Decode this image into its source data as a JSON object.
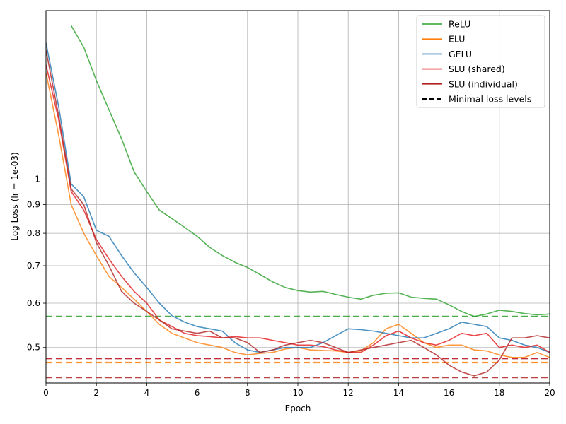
{
  "chart_data": {
    "type": "line",
    "xlabel": "Epoch",
    "ylabel": "Log Loss (lr = 1e-03)",
    "xlim": [
      0,
      20
    ],
    "ylim": [
      0.432,
      2.0
    ],
    "yscale": "log",
    "grid": true,
    "legend_position": "top-right",
    "x_ticks": [
      0,
      2,
      4,
      6,
      8,
      10,
      12,
      14,
      16,
      18,
      20
    ],
    "x_tick_labels": [
      "0",
      "2",
      "4",
      "6",
      "8",
      "10",
      "12",
      "14",
      "16",
      "18",
      "20"
    ],
    "y_ticks": [
      0.5,
      0.6,
      0.7,
      0.8,
      0.9,
      1.0
    ],
    "y_tick_labels": [
      "0.5",
      "0.6",
      "0.7",
      "0.8",
      "0.9",
      "1"
    ],
    "series": [
      {
        "name": "ReLU",
        "color": "#2ca02c",
        "x": [
          1,
          1.5,
          2,
          2.5,
          3,
          3.5,
          4,
          4.5,
          5,
          5.5,
          6,
          6.5,
          7,
          7.5,
          8,
          8.5,
          9,
          9.5,
          10,
          10.5,
          11,
          11.5,
          12,
          12.5,
          13,
          13.5,
          14,
          14.5,
          15,
          15.5,
          16,
          16.5,
          17,
          17.5,
          18,
          18.5,
          19,
          19.5,
          20
        ],
        "values": [
          1.88,
          1.72,
          1.5,
          1.33,
          1.18,
          1.03,
          0.95,
          0.88,
          0.85,
          0.82,
          0.79,
          0.755,
          0.73,
          0.71,
          0.695,
          0.675,
          0.655,
          0.64,
          0.632,
          0.628,
          0.63,
          0.622,
          0.615,
          0.61,
          0.62,
          0.625,
          0.626,
          0.615,
          0.612,
          0.61,
          0.596,
          0.58,
          0.568,
          0.574,
          0.583,
          0.58,
          0.575,
          0.572,
          0.574
        ]
      },
      {
        "name": "ELU",
        "color": "#ff7f0e",
        "x": [
          0,
          0.5,
          1,
          1.5,
          2,
          2.5,
          3,
          3.5,
          4,
          4.5,
          5,
          5.5,
          6,
          6.5,
          7,
          7.5,
          8,
          8.5,
          9,
          9.5,
          10,
          10.5,
          11,
          11.5,
          12,
          12.5,
          13,
          13.5,
          14,
          14.5,
          15,
          15.5,
          16,
          16.5,
          17,
          17.5,
          18,
          18.5,
          19,
          19.5,
          20
        ],
        "values": [
          1.55,
          1.2,
          0.9,
          0.8,
          0.73,
          0.67,
          0.64,
          0.61,
          0.58,
          0.55,
          0.53,
          0.52,
          0.51,
          0.505,
          0.5,
          0.49,
          0.485,
          0.488,
          0.49,
          0.497,
          0.5,
          0.495,
          0.494,
          0.493,
          0.49,
          0.493,
          0.51,
          0.54,
          0.55,
          0.53,
          0.51,
          0.5,
          0.505,
          0.505,
          0.495,
          0.493,
          0.485,
          0.48,
          0.48,
          0.49,
          0.48
        ]
      },
      {
        "name": "GELU",
        "color": "#1f77b4",
        "x": [
          0,
          0.5,
          1,
          1.5,
          2,
          2.5,
          3,
          3.5,
          4,
          4.5,
          5,
          5.5,
          6,
          6.5,
          7,
          7.5,
          8,
          8.5,
          9,
          9.5,
          10,
          10.5,
          11,
          11.5,
          12,
          12.5,
          13,
          13.5,
          14,
          14.5,
          15,
          15.5,
          16,
          16.5,
          17,
          17.5,
          18,
          18.5,
          19,
          19.5,
          20
        ],
        "values": [
          1.75,
          1.35,
          0.98,
          0.93,
          0.81,
          0.79,
          0.73,
          0.68,
          0.64,
          0.6,
          0.57,
          0.555,
          0.545,
          0.54,
          0.535,
          0.51,
          0.495,
          0.49,
          0.495,
          0.5,
          0.5,
          0.5,
          0.51,
          0.525,
          0.54,
          0.538,
          0.535,
          0.53,
          0.525,
          0.52,
          0.52,
          0.53,
          0.54,
          0.555,
          0.55,
          0.545,
          0.52,
          0.515,
          0.505,
          0.5,
          0.49
        ]
      },
      {
        "name": "SLU (shared)",
        "color": "#e41a1c",
        "x": [
          0,
          0.5,
          1,
          1.5,
          2,
          2.5,
          3,
          3.5,
          4,
          4.5,
          5,
          5.5,
          6,
          6.5,
          7,
          7.5,
          8,
          8.5,
          9,
          9.5,
          10,
          10.5,
          11,
          11.5,
          12,
          12.5,
          13,
          13.5,
          14,
          14.5,
          15,
          15.5,
          16,
          16.5,
          17,
          17.5,
          18,
          18.5,
          19,
          19.5,
          20
        ],
        "values": [
          1.6,
          1.28,
          0.95,
          0.88,
          0.78,
          0.72,
          0.67,
          0.63,
          0.6,
          0.56,
          0.545,
          0.53,
          0.525,
          0.523,
          0.52,
          0.523,
          0.52,
          0.52,
          0.515,
          0.51,
          0.505,
          0.505,
          0.502,
          0.495,
          0.49,
          0.49,
          0.505,
          0.525,
          0.535,
          0.52,
          0.51,
          0.505,
          0.515,
          0.53,
          0.525,
          0.53,
          0.5,
          0.505,
          0.5,
          0.505,
          0.49
        ]
      },
      {
        "name": "SLU (individual)",
        "color": "#b22222",
        "x": [
          0,
          0.5,
          1,
          1.5,
          2,
          2.5,
          3,
          3.5,
          4,
          4.5,
          5,
          5.5,
          6,
          6.5,
          7,
          7.5,
          8,
          8.5,
          9,
          9.5,
          10,
          10.5,
          11,
          11.5,
          12,
          12.5,
          13,
          13.5,
          14,
          14.5,
          15,
          15.5,
          16,
          16.5,
          17,
          17.5,
          18,
          18.5,
          19,
          19.5,
          20
        ],
        "values": [
          1.7,
          1.3,
          0.96,
          0.9,
          0.77,
          0.7,
          0.63,
          0.6,
          0.58,
          0.56,
          0.54,
          0.535,
          0.53,
          0.535,
          0.52,
          0.52,
          0.51,
          0.49,
          0.495,
          0.505,
          0.51,
          0.515,
          0.51,
          0.5,
          0.49,
          0.495,
          0.5,
          0.505,
          0.51,
          0.515,
          0.5,
          0.485,
          0.465,
          0.452,
          0.445,
          0.452,
          0.475,
          0.52,
          0.52,
          0.525,
          0.52
        ]
      }
    ],
    "minimal_levels": [
      {
        "series": "ReLU",
        "value": 0.568,
        "color": "#2ca02c"
      },
      {
        "series": "ELU",
        "value": 0.47,
        "color": "#ff7f0e"
      },
      {
        "series": "GELU",
        "value": 0.478,
        "color": "#1f77b4"
      },
      {
        "series": "SLU (shared)",
        "value": 0.478,
        "color": "#e41a1c"
      },
      {
        "series": "SLU (individual)",
        "value": 0.442,
        "color": "#b22222"
      }
    ],
    "legend": [
      {
        "label": "ReLU",
        "color": "#2ca02c",
        "style": "solid"
      },
      {
        "label": "ELU",
        "color": "#ff7f0e",
        "style": "solid"
      },
      {
        "label": "GELU",
        "color": "#1f77b4",
        "style": "solid"
      },
      {
        "label": "SLU (shared)",
        "color": "#e41a1c",
        "style": "solid"
      },
      {
        "label": "SLU (individual)",
        "color": "#b22222",
        "style": "solid"
      },
      {
        "label": "Minimal loss levels",
        "color": "#000000",
        "style": "dashed"
      }
    ]
  }
}
